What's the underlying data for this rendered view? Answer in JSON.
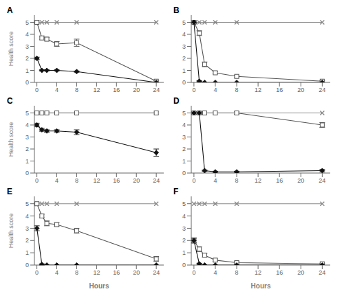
{
  "chart_data": [
    {
      "type": "line",
      "title": "A",
      "x": [
        0,
        1,
        2,
        4,
        8,
        24
      ],
      "xlim": [
        -0.5,
        25.5
      ],
      "ylim": [
        0,
        5.6
      ],
      "xticks": [
        0,
        4,
        8,
        12,
        16,
        20,
        24
      ],
      "yticks": [
        0,
        1,
        2,
        3,
        4,
        5
      ],
      "ylabel": "Health score",
      "series": [
        {
          "color": "#888888",
          "marker": "x",
          "values": [
            5,
            5,
            5,
            5,
            5,
            5
          ],
          "yerr": [
            0,
            0,
            0,
            0,
            0,
            0
          ]
        },
        {
          "color": "#555555",
          "marker": "square",
          "values": [
            5.0,
            3.7,
            3.6,
            3.2,
            3.3,
            0.1
          ],
          "yerr": [
            0.1,
            0.15,
            0.15,
            0.2,
            0.3,
            0.05
          ]
        },
        {
          "color": "#111111",
          "marker": "diamond",
          "values": [
            2.0,
            1.0,
            1.0,
            1.0,
            0.9,
            0.0
          ],
          "yerr": [
            0.1,
            0.05,
            0.05,
            0.05,
            0.05,
            0.0
          ]
        }
      ]
    },
    {
      "type": "line",
      "title": "B",
      "x": [
        0,
        1,
        2,
        4,
        8,
        24
      ],
      "xlim": [
        -0.5,
        25.5
      ],
      "ylim": [
        0,
        5.6
      ],
      "xticks": [
        0,
        4,
        8,
        12,
        16,
        20,
        24
      ],
      "yticks": [
        0,
        1,
        2,
        3,
        4,
        5
      ],
      "series": [
        {
          "color": "#888888",
          "marker": "x",
          "values": [
            5,
            5,
            5,
            5,
            5,
            5
          ],
          "yerr": [
            0,
            0,
            0,
            0,
            0,
            0
          ]
        },
        {
          "color": "#555555",
          "marker": "square",
          "values": [
            5.0,
            4.1,
            1.5,
            0.8,
            0.5,
            0.1
          ],
          "yerr": [
            0.1,
            0.2,
            0.2,
            0.1,
            0.1,
            0.05
          ]
        },
        {
          "color": "#111111",
          "marker": "diamond",
          "values": [
            5.0,
            0.1,
            0.0,
            0.0,
            0.0,
            0.0
          ],
          "yerr": [
            0.1,
            0.05,
            0.0,
            0.0,
            0.0,
            0.0
          ]
        }
      ]
    },
    {
      "type": "line",
      "title": "C",
      "x": [
        0,
        1,
        2,
        4,
        8,
        24
      ],
      "xlim": [
        -0.5,
        25.5
      ],
      "ylim": [
        0,
        5.6
      ],
      "xticks": [
        0,
        4,
        8,
        12,
        16,
        20,
        24
      ],
      "yticks": [
        0,
        1,
        2,
        3,
        4,
        5
      ],
      "ylabel": "Health score",
      "series": [
        {
          "color": "#888888",
          "marker": "x",
          "values": [
            5,
            5,
            5,
            5,
            5,
            5
          ],
          "yerr": [
            0,
            0,
            0,
            0,
            0,
            0
          ]
        },
        {
          "color": "#555555",
          "marker": "square",
          "values": [
            5.0,
            5.0,
            5.0,
            5.0,
            5.0,
            5.0
          ],
          "yerr": [
            0,
            0,
            0,
            0,
            0,
            0
          ]
        },
        {
          "color": "#111111",
          "marker": "diamond",
          "values": [
            4.0,
            3.6,
            3.5,
            3.5,
            3.4,
            1.7
          ],
          "yerr": [
            0.15,
            0.12,
            0.1,
            0.1,
            0.2,
            0.3
          ]
        }
      ]
    },
    {
      "type": "line",
      "title": "D",
      "x": [
        0,
        1,
        2,
        4,
        8,
        24
      ],
      "xlim": [
        -0.5,
        25.5
      ],
      "ylim": [
        0,
        5.6
      ],
      "xticks": [
        0,
        4,
        8,
        12,
        16,
        20,
        24
      ],
      "yticks": [
        0,
        1,
        2,
        3,
        4,
        5
      ],
      "series": [
        {
          "color": "#888888",
          "marker": "x",
          "values": [
            5,
            5,
            5,
            5,
            5,
            5
          ],
          "yerr": [
            0,
            0,
            0,
            0,
            0,
            0
          ]
        },
        {
          "color": "#555555",
          "marker": "square",
          "values": [
            5.0,
            5.0,
            5.0,
            5.0,
            5.0,
            4.0
          ],
          "yerr": [
            0,
            0,
            0,
            0,
            0.1,
            0.2
          ]
        },
        {
          "color": "#111111",
          "marker": "diamond",
          "values": [
            5.0,
            5.0,
            0.2,
            0.1,
            0.1,
            0.2
          ],
          "yerr": [
            0.1,
            0.1,
            0.05,
            0.05,
            0.05,
            0.1
          ]
        }
      ]
    },
    {
      "type": "line",
      "title": "E",
      "x": [
        0,
        1,
        2,
        4,
        8,
        24
      ],
      "xlim": [
        -0.5,
        25.5
      ],
      "ylim": [
        0,
        5.6
      ],
      "xticks": [
        0,
        4,
        8,
        12,
        16,
        20,
        24
      ],
      "yticks": [
        0,
        1,
        2,
        3,
        4,
        5
      ],
      "xlabel": "Hours",
      "ylabel": "Health score",
      "series": [
        {
          "color": "#888888",
          "marker": "x",
          "values": [
            5,
            5,
            5,
            5,
            5,
            5
          ],
          "yerr": [
            0,
            0,
            0,
            0,
            0,
            0
          ]
        },
        {
          "color": "#555555",
          "marker": "square",
          "values": [
            5.0,
            4.0,
            3.4,
            3.3,
            2.8,
            0.5
          ],
          "yerr": [
            0.1,
            0.15,
            0.2,
            0.15,
            0.2,
            0.2
          ]
        },
        {
          "color": "#111111",
          "marker": "diamond",
          "values": [
            3.0,
            0.05,
            0.0,
            0.0,
            0.0,
            0.0
          ],
          "yerr": [
            0.2,
            0.05,
            0.0,
            0.0,
            0.0,
            0.0
          ]
        }
      ]
    },
    {
      "type": "line",
      "title": "F",
      "x": [
        0,
        1,
        2,
        4,
        8,
        24
      ],
      "xlim": [
        -0.5,
        25.5
      ],
      "ylim": [
        0,
        5.6
      ],
      "xticks": [
        0,
        4,
        8,
        12,
        16,
        20,
        24
      ],
      "yticks": [
        0,
        1,
        2,
        3,
        4,
        5
      ],
      "xlabel": "Hours",
      "series": [
        {
          "color": "#888888",
          "marker": "x",
          "values": [
            5,
            5,
            5,
            5,
            5,
            5
          ],
          "yerr": [
            0,
            0,
            0,
            0,
            0,
            0
          ]
        },
        {
          "color": "#555555",
          "marker": "square",
          "values": [
            2.0,
            1.3,
            0.8,
            0.4,
            0.2,
            0.1
          ],
          "yerr": [
            0.2,
            0.2,
            0.15,
            0.1,
            0.1,
            0.05
          ]
        },
        {
          "color": "#111111",
          "marker": "diamond",
          "values": [
            2.0,
            0.1,
            0.0,
            0.0,
            0.0,
            0.0
          ],
          "yerr": [
            0.2,
            0.05,
            0.0,
            0.0,
            0.0,
            0.0
          ]
        }
      ]
    }
  ]
}
